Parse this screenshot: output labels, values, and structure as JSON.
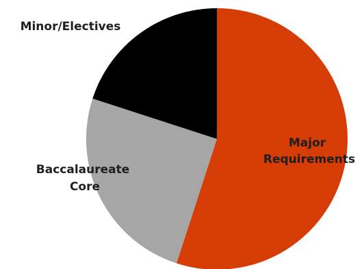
{
  "chart_data": {
    "type": "pie",
    "title": "",
    "start_angle_deg": 0,
    "direction": "clockwise",
    "slices": [
      {
        "label": "Major Requirements",
        "value": 55,
        "color": "#d63c05"
      },
      {
        "label": "Baccalaureate Core",
        "value": 25,
        "color": "#a6a6a6"
      },
      {
        "label": "Minor/Electives",
        "value": 20,
        "color": "#000000"
      }
    ]
  }
}
